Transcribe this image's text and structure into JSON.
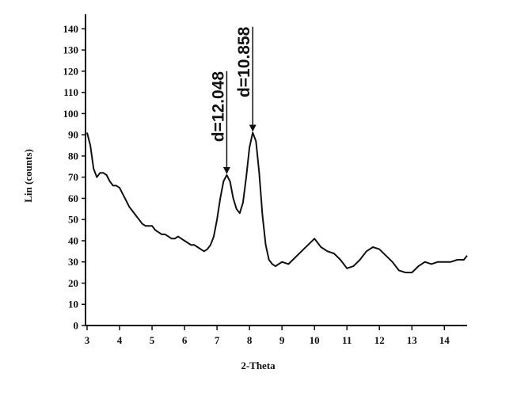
{
  "chart_data": {
    "type": "line",
    "xlabel": "2-Theta",
    "ylabel": "Lin (counts)",
    "x": [
      3.0,
      3.1,
      3.2,
      3.3,
      3.4,
      3.5,
      3.6,
      3.7,
      3.8,
      3.9,
      4.0,
      4.1,
      4.2,
      4.3,
      4.4,
      4.5,
      4.6,
      4.7,
      4.8,
      4.9,
      5.0,
      5.1,
      5.2,
      5.3,
      5.4,
      5.5,
      5.6,
      5.7,
      5.8,
      5.9,
      6.0,
      6.1,
      6.2,
      6.3,
      6.4,
      6.5,
      6.6,
      6.7,
      6.8,
      6.9,
      7.0,
      7.1,
      7.2,
      7.3,
      7.4,
      7.5,
      7.6,
      7.7,
      7.8,
      7.9,
      8.0,
      8.1,
      8.2,
      8.3,
      8.4,
      8.5,
      8.6,
      8.7,
      8.8,
      8.9,
      9.0,
      9.2,
      9.4,
      9.6,
      9.8,
      10.0,
      10.2,
      10.4,
      10.6,
      10.8,
      11.0,
      11.2,
      11.4,
      11.6,
      11.8,
      12.0,
      12.2,
      12.4,
      12.6,
      12.8,
      13.0,
      13.2,
      13.4,
      13.6,
      13.8,
      14.0,
      14.2,
      14.4,
      14.6,
      14.7
    ],
    "series": [
      {
        "color": "#111111",
        "values": [
          91,
          85,
          74,
          70,
          72,
          72,
          71,
          68,
          66,
          66,
          65,
          62,
          59,
          56,
          54,
          52,
          50,
          48,
          47,
          47,
          47,
          45,
          44,
          43,
          43,
          42,
          41,
          41,
          42,
          41,
          40,
          39,
          38,
          38,
          37,
          36,
          35,
          36,
          38,
          42,
          50,
          60,
          68,
          71,
          68,
          60,
          55,
          53,
          58,
          70,
          84,
          91,
          87,
          72,
          52,
          38,
          31,
          29,
          28,
          29,
          30,
          29,
          32,
          35,
          38,
          41,
          37,
          35,
          34,
          31,
          27,
          28,
          31,
          35,
          37,
          36,
          33,
          30,
          26,
          25,
          25,
          28,
          30,
          29,
          30,
          30,
          30,
          31,
          31,
          33
        ]
      }
    ],
    "annotations": [
      {
        "text": "d=12.048",
        "x": 7.3,
        "y": 71,
        "arrow_from": 120
      },
      {
        "text": "d=10.858",
        "x": 8.1,
        "y": 91,
        "arrow_from": 141
      }
    ],
    "xlim": [
      3,
      14.7
    ],
    "ylim": [
      0,
      145
    ],
    "xticks": [
      3,
      4,
      5,
      6,
      7,
      8,
      9,
      10,
      11,
      12,
      13,
      14
    ],
    "yticks": [
      0,
      10,
      20,
      30,
      40,
      50,
      60,
      70,
      80,
      90,
      100,
      110,
      120,
      130,
      140
    ]
  }
}
